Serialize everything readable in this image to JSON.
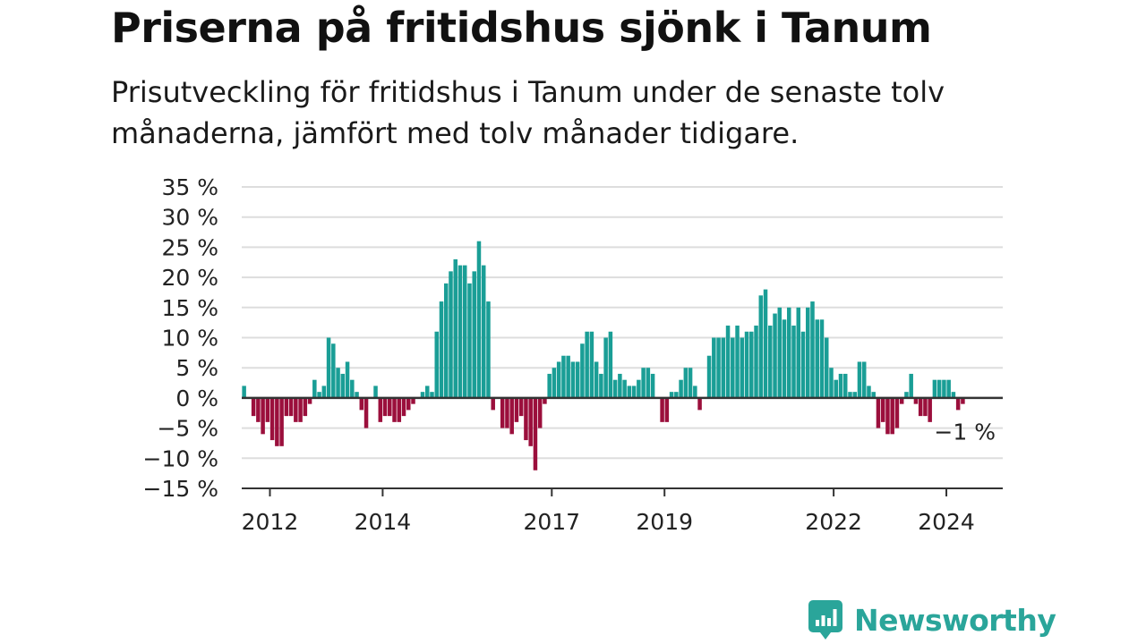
{
  "title": "Priserna på fritidshus sjönk i Tanum",
  "subtitle": "Prisutveckling för fritidshus i Tanum under de senaste tolv månaderna, jämfört med tolv månader tidigare.",
  "brand": {
    "name": "Newsworthy",
    "icon": "newsworthy-logo-icon"
  },
  "colors": {
    "positive": "#1a9e96",
    "negative": "#9b0f3c",
    "grid": "#dddddd",
    "axis": "#333333",
    "brand": "#2aa59a"
  },
  "chart_data": {
    "type": "bar",
    "x_unit": "month",
    "start": "2011-07",
    "end": "2025-01",
    "ylim": [
      -15,
      35
    ],
    "yticks": [
      35,
      30,
      25,
      20,
      15,
      10,
      5,
      0,
      -5,
      -10,
      -15
    ],
    "ytick_labels": [
      "35 %",
      "30 %",
      "25 %",
      "20 %",
      "15 %",
      "10 %",
      "5 %",
      "0 %",
      "−5 %",
      "−10 %",
      "−15 %"
    ],
    "xticks": [
      "2012",
      "2014",
      "2017",
      "2019",
      "2022",
      "2024"
    ],
    "grid": true,
    "end_label": "−1 %",
    "values": [
      2,
      0,
      -3,
      -4,
      -6,
      -4,
      -7,
      -8,
      -8,
      -3,
      -3,
      -4,
      -4,
      -3,
      -1,
      3,
      1,
      2,
      10,
      9,
      5,
      4,
      6,
      3,
      1,
      -2,
      -5,
      0,
      2,
      -4,
      -3,
      -3,
      -4,
      -4,
      -3,
      -2,
      -1,
      0,
      1,
      2,
      1,
      11,
      16,
      19,
      21,
      23,
      22,
      22,
      19,
      21,
      26,
      22,
      16,
      -2,
      0,
      -5,
      -5,
      -6,
      -4,
      -3,
      -7,
      -8,
      -12,
      -5,
      -1,
      4,
      5,
      6,
      7,
      7,
      6,
      6,
      9,
      11,
      11,
      6,
      4,
      10,
      11,
      3,
      4,
      3,
      2,
      2,
      3,
      5,
      5,
      4,
      0,
      -4,
      -4,
      1,
      1,
      3,
      5,
      5,
      2,
      -2,
      0,
      7,
      10,
      10,
      10,
      12,
      10,
      12,
      10,
      11,
      11,
      12,
      17,
      18,
      12,
      14,
      15,
      13,
      15,
      12,
      15,
      11,
      15,
      16,
      13,
      13,
      10,
      5,
      3,
      4,
      4,
      1,
      1,
      6,
      6,
      2,
      1,
      -5,
      -4,
      -6,
      -6,
      -5,
      -1,
      1,
      4,
      -1,
      -3,
      -3,
      -4,
      3,
      3,
      3,
      3,
      1,
      -2,
      -1
    ]
  }
}
